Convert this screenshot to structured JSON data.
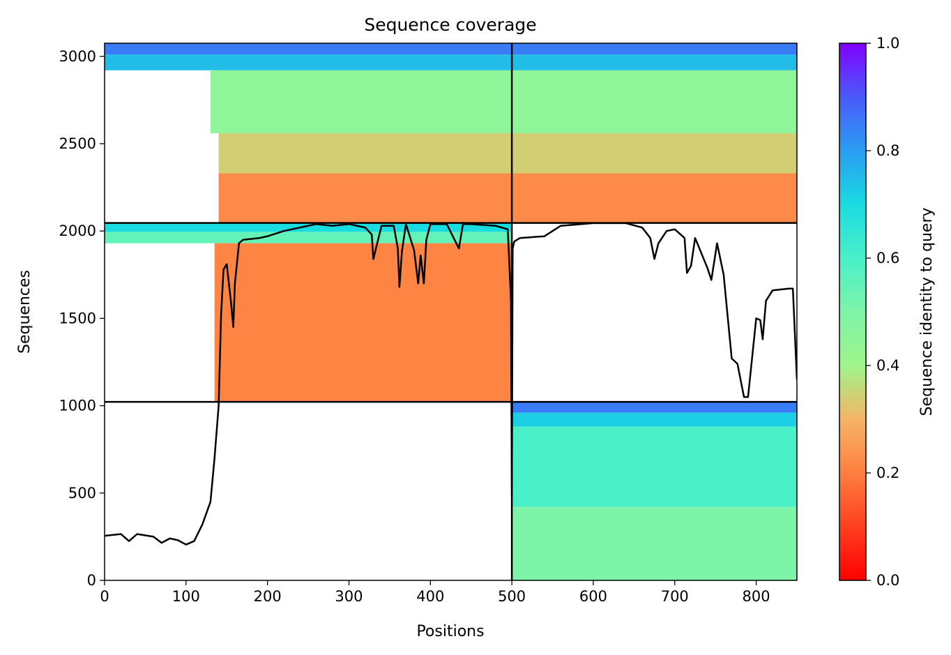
{
  "chart_data": {
    "type": "heatmap",
    "title": "Sequence coverage",
    "xlabel": "Positions",
    "ylabel": "Sequences",
    "xlim": [
      0,
      850
    ],
    "ylim": [
      0,
      3075
    ],
    "xticks": [
      0,
      100,
      200,
      300,
      400,
      500,
      600,
      700,
      800
    ],
    "yticks": [
      0,
      500,
      1000,
      1500,
      2000,
      2500,
      3000
    ],
    "colorbar": {
      "label": "Sequence identity to query",
      "colormap": "rainbow_r",
      "range": [
        0,
        1
      ],
      "ticks": [
        0.0,
        0.2,
        0.4,
        0.6,
        0.8,
        1.0
      ]
    },
    "chain_boundaries": {
      "x_positions": [
        500
      ],
      "y_sequences": [
        1022,
        2046
      ]
    },
    "blocks": [
      {
        "name": "chain-a-chain-b-pairs",
        "rows": [
          2046,
          3075
        ],
        "bands": [
          {
            "from": 3010,
            "to": 3075,
            "identity": 0.85
          },
          {
            "from": 2920,
            "to": 3010,
            "identity": 0.75
          },
          {
            "from": 2560,
            "to": 2920,
            "identity": 0.45
          },
          {
            "from": 2330,
            "to": 2560,
            "identity": 0.34
          },
          {
            "from": 2046,
            "to": 2330,
            "identity": 0.22
          }
        ]
      },
      {
        "name": "chain-a-only",
        "rows": [
          1022,
          2046
        ],
        "bands": [
          {
            "from": 1995,
            "to": 2046,
            "identity": 0.7
          },
          {
            "from": 1930,
            "to": 1995,
            "identity": 0.55
          },
          {
            "from": 1022,
            "to": 1930,
            "identity": 0.21
          }
        ]
      },
      {
        "name": "chain-b-only",
        "rows": [
          0,
          1022
        ],
        "bands": [
          {
            "from": 960,
            "to": 1022,
            "identity": 0.85
          },
          {
            "from": 880,
            "to": 960,
            "identity": 0.72
          },
          {
            "from": 420,
            "to": 880,
            "identity": 0.6
          },
          {
            "from": 0,
            "to": 420,
            "identity": 0.5
          }
        ]
      }
    ],
    "coverage_line": {
      "x": [
        0,
        20,
        30,
        40,
        60,
        70,
        80,
        90,
        100,
        110,
        120,
        130,
        135,
        140,
        143,
        146,
        150,
        155,
        158,
        160,
        165,
        170,
        190,
        200,
        220,
        260,
        280,
        300,
        320,
        328,
        330,
        340,
        355,
        360,
        362,
        365,
        370,
        380,
        385,
        388,
        392,
        395,
        400,
        420,
        435,
        440,
        450,
        480,
        495,
        499,
        500,
        501,
        503,
        510,
        540,
        550,
        560,
        600,
        640,
        660,
        670,
        675,
        680,
        690,
        700,
        712,
        715,
        720,
        725,
        740,
        745,
        752,
        760,
        770,
        777,
        785,
        790,
        800,
        805,
        808,
        812,
        820,
        840,
        845,
        850
      ],
      "y": [
        255,
        265,
        225,
        265,
        250,
        215,
        240,
        230,
        205,
        225,
        320,
        450,
        700,
        1000,
        1520,
        1780,
        1810,
        1600,
        1450,
        1700,
        1930,
        1950,
        1960,
        1970,
        2000,
        2040,
        2030,
        2040,
        2020,
        1980,
        1840,
        2030,
        2030,
        1900,
        1680,
        1880,
        2040,
        1890,
        1700,
        1860,
        1700,
        1950,
        2040,
        2040,
        1900,
        2040,
        2040,
        2030,
        2010,
        1600,
        490,
        1900,
        1940,
        1960,
        1970,
        2000,
        2030,
        2045,
        2045,
        2020,
        1960,
        1840,
        1930,
        2000,
        2010,
        1960,
        1760,
        1800,
        1960,
        1790,
        1720,
        1930,
        1750,
        1270,
        1240,
        1050,
        1050,
        1500,
        1490,
        1380,
        1600,
        1660,
        1670,
        1670,
        1150
      ]
    }
  }
}
